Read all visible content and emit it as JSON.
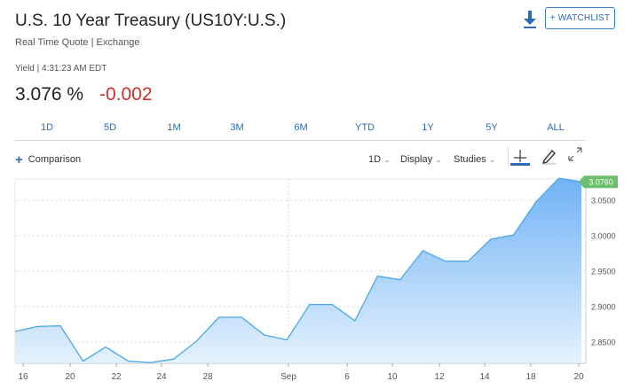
{
  "header": {
    "title": "U.S. 10 Year Treasury (US10Y:U.S.)",
    "subtitle": "Real Time Quote | Exchange",
    "watchlist_label": "+ WATCHLIST",
    "download_icon": "download-icon"
  },
  "quote": {
    "yield_line": "Yield | 4:31:23 AM EDT",
    "price": "3.076 %",
    "change": "-0.002",
    "change_color": "#d0312d"
  },
  "ranges": [
    "1D",
    "5D",
    "1M",
    "3M",
    "6M",
    "YTD",
    "1Y",
    "5Y",
    "ALL"
  ],
  "toolbar": {
    "comparison_label": "Comparison",
    "interval_label": "1D",
    "display_label": "Display",
    "studies_label": "Studies",
    "icons": [
      "crosshair-icon",
      "pencil-icon",
      "expand-icon"
    ]
  },
  "chart_data": {
    "type": "area",
    "x_tick_labels": [
      "16",
      "20",
      "22",
      "24",
      "28",
      "Sep",
      "6",
      "10",
      "12",
      "14",
      "18",
      "20"
    ],
    "y_tick_labels": [
      "3.0500",
      "3.0000",
      "2.9500",
      "2.9000",
      "2.8500"
    ],
    "ylim": [
      2.82,
      3.08
    ],
    "last_value_label": "3.0760",
    "line_color": "#4aa8e8",
    "fill_color": "#cfe7fb",
    "accent_color": "#6cbf6c",
    "values": [
      2.865,
      2.872,
      2.873,
      2.823,
      2.843,
      2.823,
      2.821,
      2.826,
      2.851,
      2.885,
      2.885,
      2.86,
      2.853,
      2.903,
      2.903,
      2.88,
      2.943,
      2.938,
      2.979,
      2.964,
      2.964,
      2.995,
      3.001,
      3.048,
      3.081,
      3.076
    ]
  }
}
